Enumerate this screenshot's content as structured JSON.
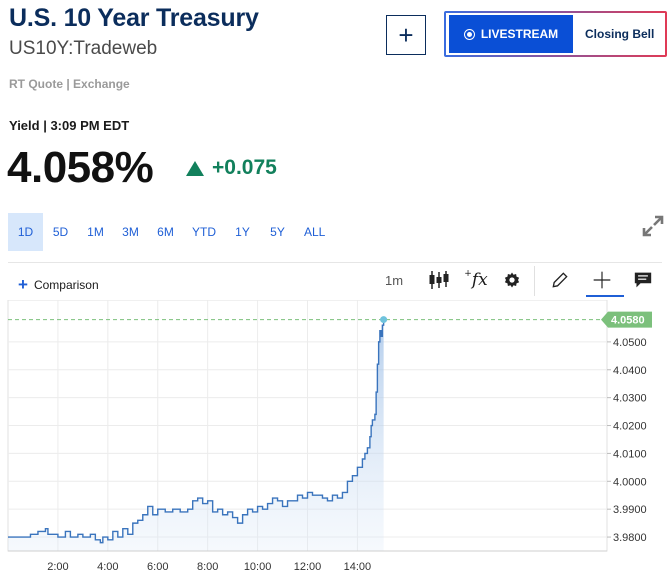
{
  "header": {
    "title": "U.S. 10 Year Treasury",
    "symbol": "US10Y:Tradeweb",
    "source": "RT Quote | Exchange",
    "yield_label": "Yield | 3:09 PM EDT",
    "price": "4.058%",
    "change": "+0.075",
    "change_color": "#12805c"
  },
  "actions": {
    "add_label": "+",
    "livestream_label": "LIVESTREAM",
    "closing_bell_label": "Closing Bell"
  },
  "ranges": [
    "1D",
    "5D",
    "1M",
    "3M",
    "6M",
    "YTD",
    "1Y",
    "5Y",
    "ALL"
  ],
  "active_range": "1D",
  "toolbar": {
    "comparison_label": "Comparison",
    "interval": "1m",
    "icons": [
      "candlestick-icon",
      "function-icon",
      "gear-icon",
      "pencil-icon",
      "crosshair-icon",
      "comment-icon"
    ]
  },
  "chart_data": {
    "type": "area",
    "x_ticks": [
      "2:00",
      "4:00",
      "6:00",
      "8:00",
      "10:00",
      "12:00",
      "14:00"
    ],
    "y_ticks": [
      "4.0500",
      "4.0400",
      "4.0300",
      "4.0200",
      "4.0100",
      "4.0000",
      "3.9900",
      "3.9800"
    ],
    "last_price_label": "4.0580",
    "ylim": [
      3.975,
      4.06
    ],
    "xlim_hours": [
      0.0,
      24.0
    ],
    "series": [
      {
        "values": [
          [
            0.0,
            3.98
          ],
          [
            0.6,
            3.98
          ],
          [
            0.9,
            3.981
          ],
          [
            1.2,
            3.982
          ],
          [
            1.4,
            3.982
          ],
          [
            1.5,
            3.983
          ],
          [
            1.6,
            3.981
          ],
          [
            1.9,
            3.981
          ],
          [
            2.0,
            3.98
          ],
          [
            2.2,
            3.98
          ],
          [
            2.3,
            3.982
          ],
          [
            2.5,
            3.98
          ],
          [
            2.8,
            3.981
          ],
          [
            3.0,
            3.98
          ],
          [
            3.3,
            3.981
          ],
          [
            3.5,
            3.979
          ],
          [
            3.7,
            3.978
          ],
          [
            3.8,
            3.98
          ],
          [
            4.0,
            3.979
          ],
          [
            4.2,
            3.982
          ],
          [
            4.4,
            3.98
          ],
          [
            4.6,
            3.983
          ],
          [
            4.8,
            3.981
          ],
          [
            5.0,
            3.985
          ],
          [
            5.2,
            3.986
          ],
          [
            5.4,
            3.988
          ],
          [
            5.6,
            3.991
          ],
          [
            5.8,
            3.988
          ],
          [
            6.0,
            3.99
          ],
          [
            6.3,
            3.989
          ],
          [
            6.6,
            3.99
          ],
          [
            6.9,
            3.989
          ],
          [
            7.2,
            3.99
          ],
          [
            7.4,
            3.993
          ],
          [
            7.6,
            3.994
          ],
          [
            7.8,
            3.992
          ],
          [
            8.0,
            3.993
          ],
          [
            8.2,
            3.989
          ],
          [
            8.4,
            3.99
          ],
          [
            8.6,
            3.988
          ],
          [
            8.8,
            3.989
          ],
          [
            9.0,
            3.987
          ],
          [
            9.2,
            3.985
          ],
          [
            9.4,
            3.988
          ],
          [
            9.6,
            3.99
          ],
          [
            9.8,
            3.989
          ],
          [
            10.0,
            3.991
          ],
          [
            10.2,
            3.99
          ],
          [
            10.4,
            3.992
          ],
          [
            10.6,
            3.994
          ],
          [
            10.8,
            3.993
          ],
          [
            11.0,
            3.991
          ],
          [
            11.2,
            3.993
          ],
          [
            11.4,
            3.993
          ],
          [
            11.6,
            3.995
          ],
          [
            11.8,
            3.994
          ],
          [
            12.0,
            3.996
          ],
          [
            12.2,
            3.995
          ],
          [
            12.4,
            3.995
          ],
          [
            12.6,
            3.994
          ],
          [
            12.8,
            3.993
          ],
          [
            13.0,
            3.995
          ],
          [
            13.2,
            3.994
          ],
          [
            13.4,
            3.996
          ],
          [
            13.6,
            4.0
          ],
          [
            13.8,
            4.002
          ],
          [
            14.0,
            4.005
          ],
          [
            14.2,
            4.008
          ],
          [
            14.3,
            4.01
          ],
          [
            14.4,
            4.012
          ],
          [
            14.5,
            4.016
          ],
          [
            14.55,
            4.02
          ],
          [
            14.6,
            4.022
          ],
          [
            14.7,
            4.024
          ],
          [
            14.75,
            4.032
          ],
          [
            14.8,
            4.042
          ],
          [
            14.85,
            4.05
          ],
          [
            14.9,
            4.054
          ],
          [
            14.95,
            4.052
          ],
          [
            15.0,
            4.056
          ],
          [
            15.05,
            4.058
          ]
        ]
      }
    ]
  }
}
